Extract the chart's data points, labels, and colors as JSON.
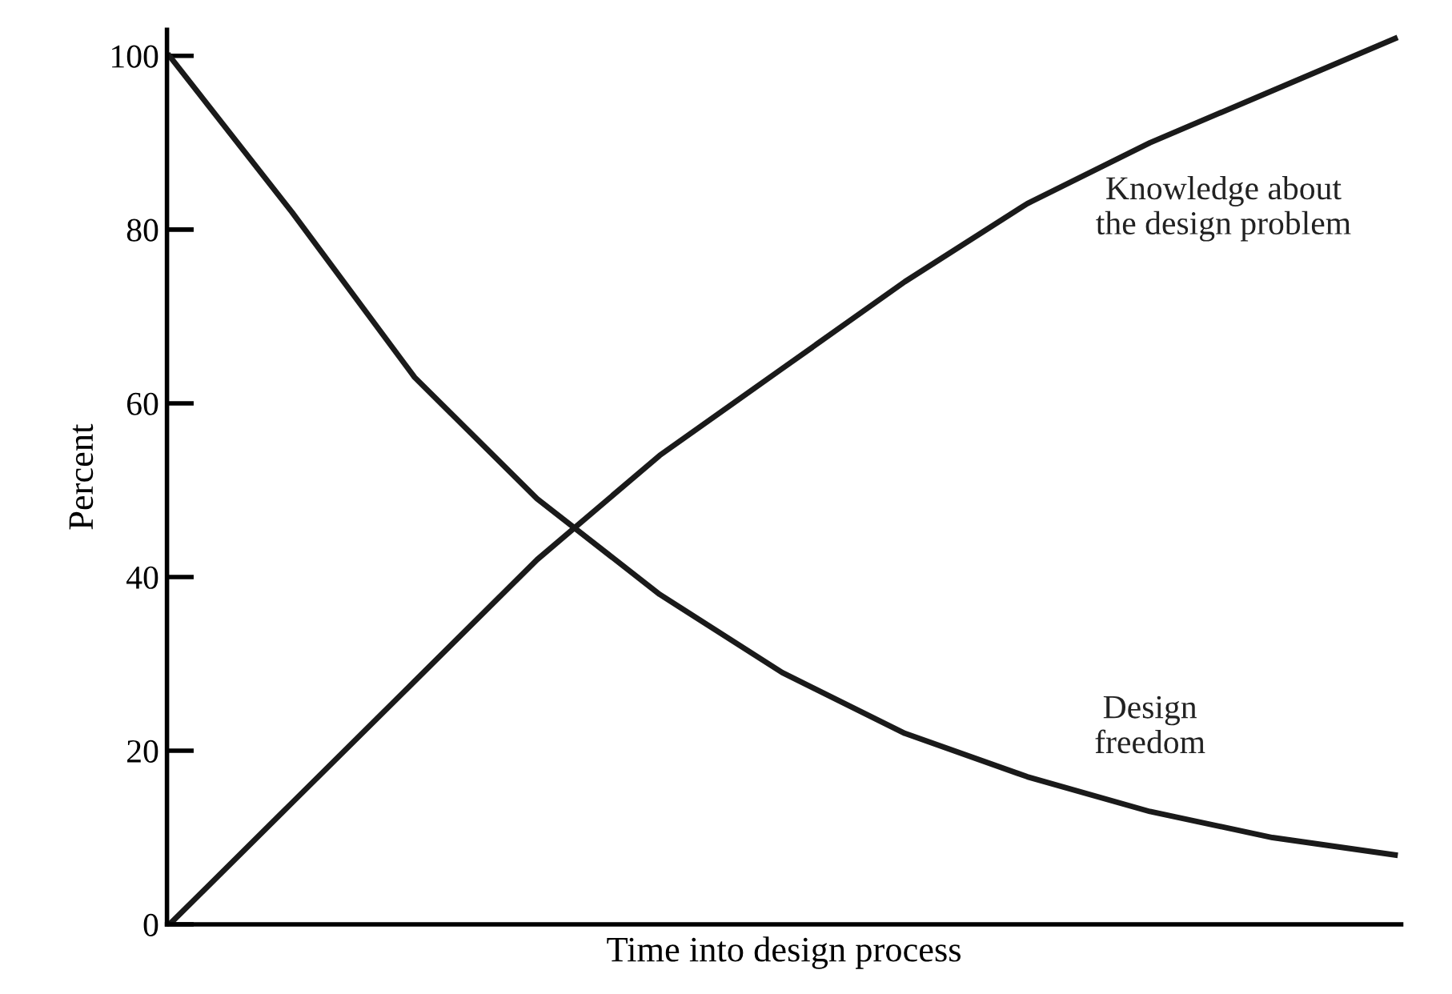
{
  "chart_data": {
    "type": "line",
    "xlabel": "Time into design process",
    "ylabel": "Percent",
    "categories": [
      null,
      null,
      null,
      null,
      null,
      null,
      null,
      null,
      null,
      null,
      null
    ],
    "series": [
      {
        "name": "Knowledge about\nthe design problem",
        "color": "#1a1a1a",
        "values": [
          0,
          14,
          28,
          42,
          54,
          64,
          74,
          83,
          90,
          96,
          102
        ]
      },
      {
        "name": "Design\nfreedom",
        "color": "#1a1a1a",
        "values": [
          100,
          82,
          63,
          49,
          38,
          29,
          22,
          17,
          13,
          10,
          8
        ]
      }
    ],
    "ylim": [
      0,
      103
    ],
    "yticks": [
      0,
      20,
      40,
      60,
      80,
      100
    ],
    "grid": false,
    "legend": false,
    "marker": "none",
    "line_style": "solid"
  }
}
